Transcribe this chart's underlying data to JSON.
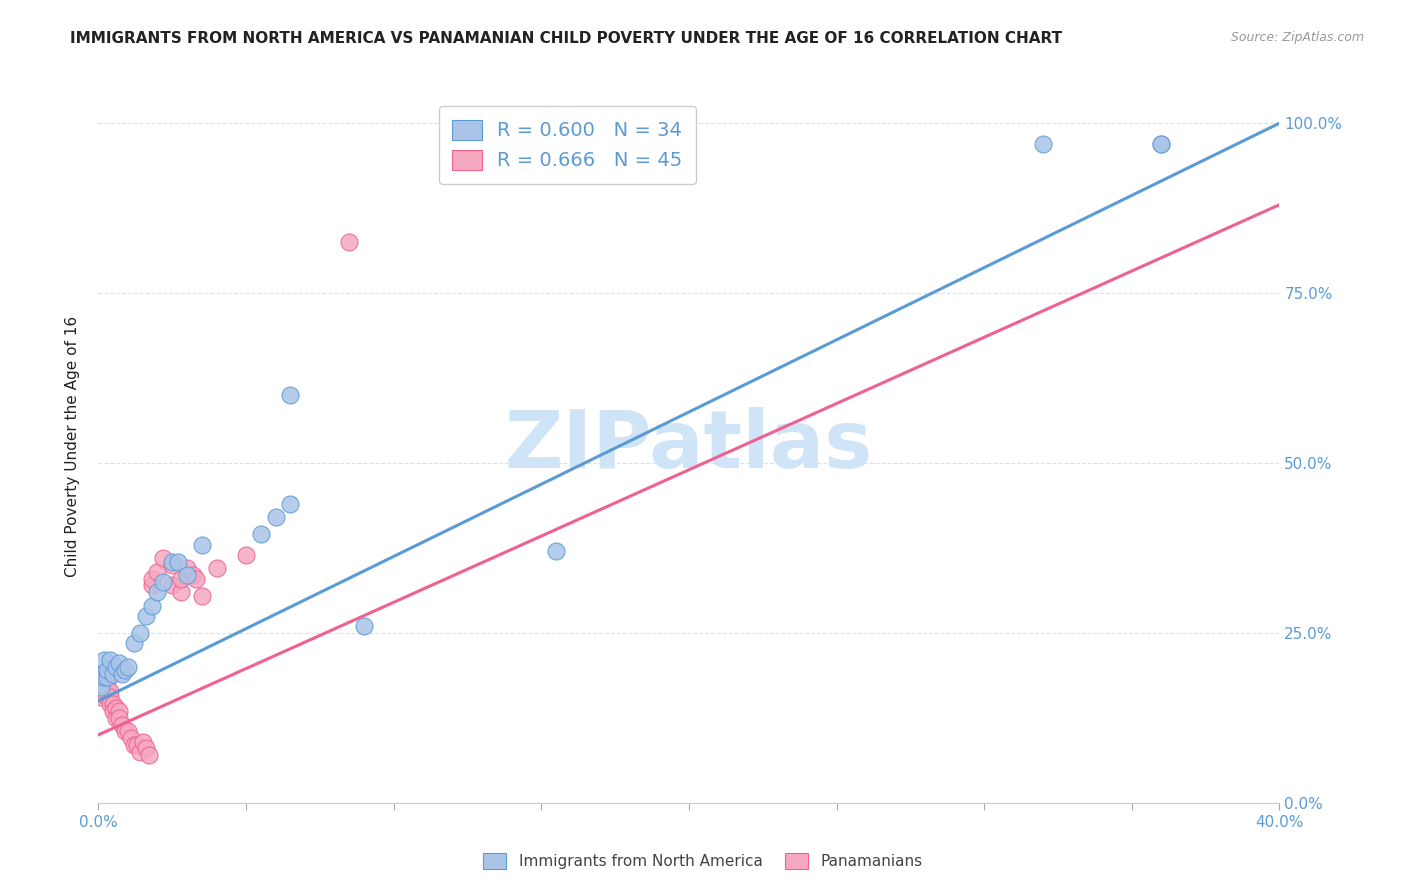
{
  "title": "IMMIGRANTS FROM NORTH AMERICA VS PANAMANIAN CHILD POVERTY UNDER THE AGE OF 16 CORRELATION CHART",
  "source": "Source: ZipAtlas.com",
  "ylabel": "Child Poverty Under the Age of 16",
  "ylabel_right_ticks": [
    "0.0%",
    "25.0%",
    "50.0%",
    "75.0%",
    "100.0%"
  ],
  "ylabel_right_vals": [
    0.0,
    0.25,
    0.5,
    0.75,
    1.0
  ],
  "watermark": "ZIPatlas",
  "legend_blue_label": "Immigrants from North America",
  "legend_pink_label": "Panamanians",
  "R_blue": 0.6,
  "N_blue": 34,
  "R_pink": 0.666,
  "N_pink": 45,
  "title_color": "#222222",
  "source_color": "#999999",
  "tick_color": "#5b9bd5",
  "grid_color": "#e0e0e0",
  "watermark_color": "#d0e4f7",
  "blue_scatter_color": "#aac4e8",
  "pink_scatter_color": "#f5a8c0",
  "blue_line_color": "#5b9bd5",
  "pink_line_color": "#f06090",
  "blue_edge_color": "#5b9bd5",
  "pink_edge_color": "#f06090",
  "blue_line_x0": 0.0,
  "blue_line_y0": 0.15,
  "blue_line_x1": 0.4,
  "blue_line_y1": 1.0,
  "pink_line_x0": 0.0,
  "pink_line_y0": 0.1,
  "pink_line_x1": 0.4,
  "pink_line_y1": 0.88,
  "blue_points_x": [
    0.0005,
    0.001,
    0.001,
    0.0015,
    0.002,
    0.002,
    0.003,
    0.003,
    0.004,
    0.005,
    0.006,
    0.007,
    0.008,
    0.009,
    0.01,
    0.012,
    0.014,
    0.016,
    0.018,
    0.02,
    0.022,
    0.025,
    0.027,
    0.03,
    0.035,
    0.055,
    0.06,
    0.065,
    0.065,
    0.09,
    0.155,
    0.32,
    0.36,
    0.36
  ],
  "blue_points_y": [
    0.19,
    0.175,
    0.17,
    0.19,
    0.21,
    0.185,
    0.185,
    0.195,
    0.21,
    0.19,
    0.2,
    0.205,
    0.19,
    0.195,
    0.2,
    0.235,
    0.25,
    0.275,
    0.29,
    0.31,
    0.325,
    0.355,
    0.355,
    0.335,
    0.38,
    0.395,
    0.42,
    0.44,
    0.6,
    0.26,
    0.37,
    0.97,
    0.97,
    0.97
  ],
  "pink_points_x": [
    0.0005,
    0.001,
    0.001,
    0.001,
    0.0015,
    0.002,
    0.002,
    0.002,
    0.003,
    0.003,
    0.003,
    0.004,
    0.004,
    0.004,
    0.005,
    0.005,
    0.006,
    0.006,
    0.007,
    0.007,
    0.008,
    0.009,
    0.01,
    0.011,
    0.012,
    0.013,
    0.014,
    0.015,
    0.016,
    0.017,
    0.018,
    0.018,
    0.02,
    0.022,
    0.025,
    0.025,
    0.028,
    0.028,
    0.03,
    0.032,
    0.033,
    0.035,
    0.04,
    0.05,
    0.085
  ],
  "pink_points_y": [
    0.18,
    0.175,
    0.165,
    0.155,
    0.185,
    0.19,
    0.18,
    0.17,
    0.18,
    0.17,
    0.155,
    0.165,
    0.155,
    0.145,
    0.145,
    0.135,
    0.14,
    0.125,
    0.135,
    0.125,
    0.115,
    0.105,
    0.105,
    0.095,
    0.085,
    0.085,
    0.075,
    0.09,
    0.08,
    0.07,
    0.32,
    0.33,
    0.34,
    0.36,
    0.35,
    0.32,
    0.31,
    0.33,
    0.345,
    0.335,
    0.33,
    0.305,
    0.345,
    0.365,
    0.825
  ],
  "xlim": [
    0.0,
    0.4
  ],
  "ylim": [
    0.0,
    1.05
  ],
  "xticks": [
    0.0,
    0.05,
    0.1,
    0.15,
    0.2,
    0.25,
    0.3,
    0.35,
    0.4
  ]
}
